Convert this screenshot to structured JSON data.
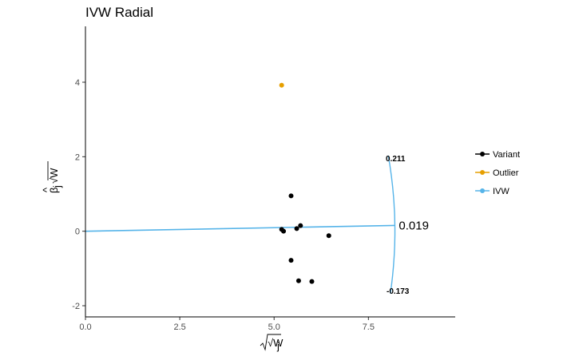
{
  "chart_data": {
    "type": "scatter",
    "title": "IVW Radial",
    "xlabel": "√W",
    "xlabel_sub": "j",
    "ylabel_beta": "β",
    "ylabel_hat": "^",
    "ylabel_sub": "j",
    "ylabel_sqrt": "√W",
    "xlim": [
      0,
      9.8
    ],
    "ylim": [
      -2.3,
      5.5
    ],
    "x_ticks": [
      0,
      2.5,
      5,
      7.5
    ],
    "x_tick_labels": [
      "0.0",
      "2.5",
      "5.0",
      "7.5"
    ],
    "y_ticks": [
      -2,
      0,
      2,
      4
    ],
    "y_tick_labels": [
      "-2",
      "0",
      "2",
      "4"
    ],
    "grid": false,
    "legend_position": "right",
    "legend": [
      {
        "label": "Variant",
        "color": "#000000"
      },
      {
        "label": "Outlier",
        "color": "#E69F00"
      },
      {
        "label": "IVW",
        "color": "#56B4E9"
      }
    ],
    "variants": [
      {
        "x": 5.2,
        "y": 0.05
      },
      {
        "x": 5.25,
        "y": 0.0
      },
      {
        "x": 5.45,
        "y": 0.95
      },
      {
        "x": 5.45,
        "y": -0.78
      },
      {
        "x": 5.6,
        "y": 0.07
      },
      {
        "x": 5.65,
        "y": -1.33
      },
      {
        "x": 5.7,
        "y": 0.15
      },
      {
        "x": 6.0,
        "y": -1.35
      },
      {
        "x": 6.45,
        "y": -0.12
      }
    ],
    "outliers": [
      {
        "x": 5.2,
        "y": 3.92
      }
    ],
    "ivw_line": {
      "x_end": 8.2,
      "slope": 0.019
    },
    "ivw_estimate": "0.019",
    "ci_upper": "0.211",
    "ci_lower": "-0.173",
    "ci_upper_value": 0.211,
    "ci_lower_value": -0.173
  }
}
